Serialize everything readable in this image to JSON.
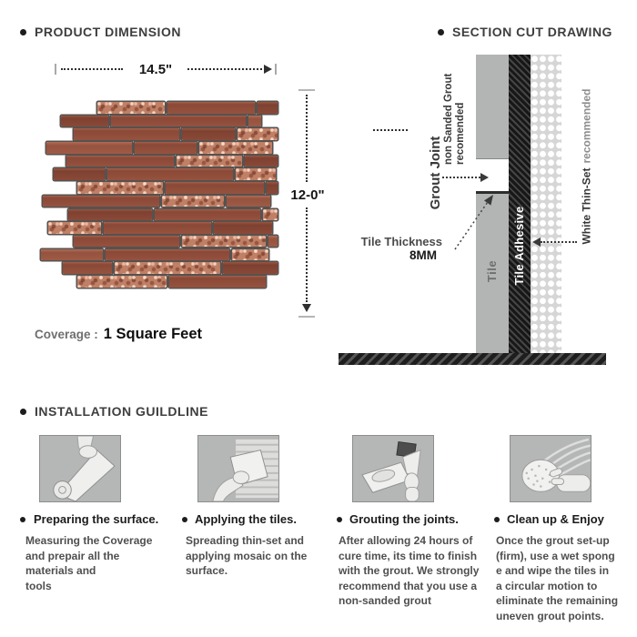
{
  "product_dimension": {
    "heading": "PRODUCT DIMENSION",
    "width_dimension": "14.5\"",
    "height_dimension": "12-0\"",
    "coverage_label": "Coverage :",
    "coverage_value": "1 Square Feet"
  },
  "section_cut": {
    "heading": "SECTION CUT DRAWING",
    "grout_joint_label": "Grout Joint",
    "grout_joint_note_line1": "non Sanded Grout",
    "grout_joint_note_line2": "recomended",
    "tile_thickness_label": "Tile Thickness",
    "tile_thickness_value": "8MM",
    "tile_layer_label": "Tile",
    "adhesive_layer_label": "Tile Adhesive",
    "thinset_layer_label": "White Thin-Set",
    "thinset_layer_note": "recommended"
  },
  "installation": {
    "heading": "INSTALLATION GUILDLINE",
    "steps": [
      {
        "title": "Preparing the surface.",
        "description": "Measuring the Coverage\nand prepair all the\nmaterials and\ntools",
        "icon": "surface-prep-roll-illustration"
      },
      {
        "title": "Applying the tiles.",
        "description": "Spreading thin-set and\napplying mosaic on the\nsurface.",
        "icon": "trowel-thinset-illustration"
      },
      {
        "title": "Grouting the joints.",
        "description": "After allowing 24 hours of\ncure time, its time to finish\nwith the grout. We strongly\nrecommend that you use a\nnon-sanded grout",
        "icon": "grout-float-illustration"
      },
      {
        "title": "Clean up & Enjoy",
        "description": "Once the grout set-up\n(firm), use a wet spong\ne and wipe the tiles in\n a circular motion to\neliminate the remaining\nuneven grout points.",
        "icon": "sponge-cleanup-illustration"
      }
    ]
  },
  "colors": {
    "tile_plain": "#92503e",
    "tile_textured": "#c5876d",
    "section_tile_gray": "#b3b5b4",
    "adhesive_dark": "#1c1c1c",
    "thinset_bg": "#d6d6d6",
    "heading_text": "#3e3e3e"
  }
}
